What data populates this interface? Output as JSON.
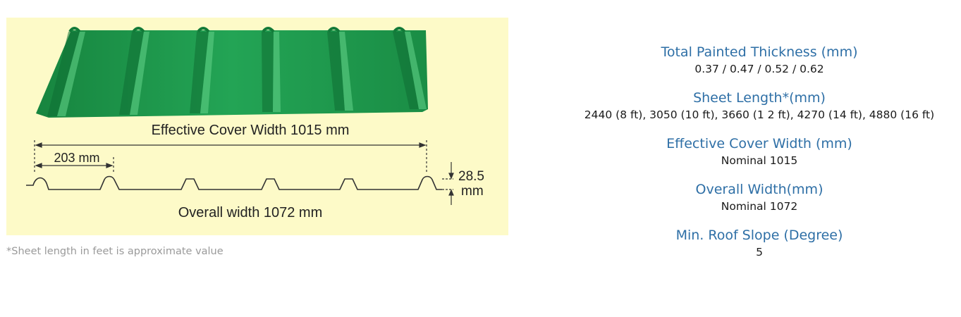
{
  "diagram": {
    "effective_label": "Effective Cover Width 1015 mm",
    "pitch_label": "203 mm",
    "height_value": "28.5",
    "height_unit": "mm",
    "overall_label": "Overall width 1072 mm",
    "sheet_color": "#1d9a4c"
  },
  "footnote": "*Sheet length in feet is approximate value",
  "specs": [
    {
      "label": "Total Painted Thickness (mm)",
      "value": "0.37 / 0.47 / 0.52 / 0.62"
    },
    {
      "label": "Sheet Length*(mm)",
      "value": "2440 (8 ft), 3050 (10 ft), 3660 (1 2 ft), 4270 (14 ft), 4880 (16 ft)"
    },
    {
      "label": "Effective Cover Width (mm)",
      "value": "Nominal 1015"
    },
    {
      "label": "Overall Width(mm)",
      "value": "Nominal 1072"
    },
    {
      "label": "Min. Roof Slope (Degree)",
      "value": "5"
    }
  ]
}
